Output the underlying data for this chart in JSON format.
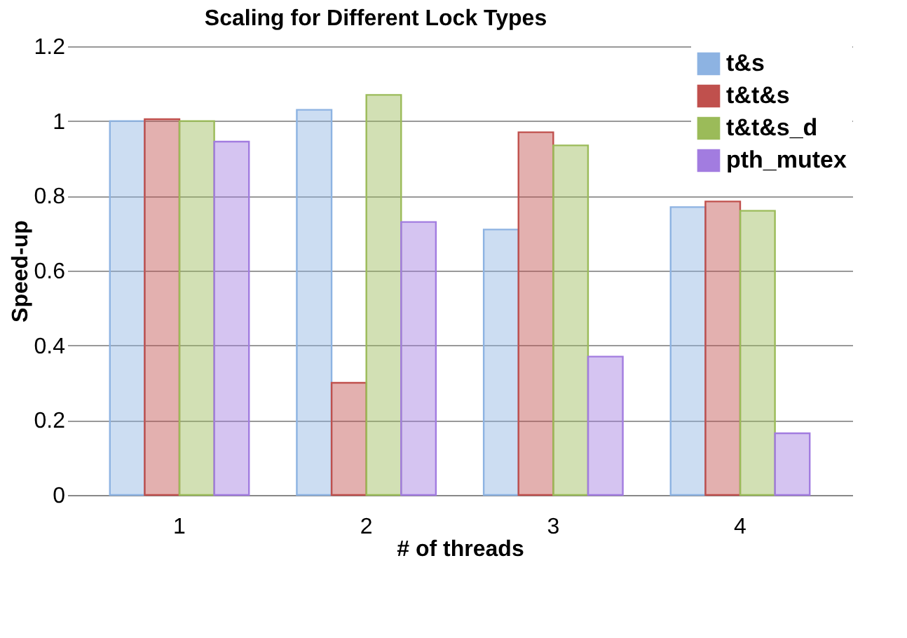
{
  "chart_data": {
    "type": "bar",
    "title": "Scaling for Different Lock Types",
    "xlabel": "# of threads",
    "ylabel": "Speed-up",
    "categories": [
      "1",
      "2",
      "3",
      "4"
    ],
    "series": [
      {
        "name": "t&s",
        "color": "#8db3e2",
        "values": [
          1.0,
          1.03,
          0.71,
          0.77
        ]
      },
      {
        "name": "t&t&s",
        "color": "#c0504d",
        "values": [
          1.005,
          0.3,
          0.97,
          0.785
        ]
      },
      {
        "name": "t&t&s_d",
        "color": "#9bbb59",
        "values": [
          1.0,
          1.07,
          0.935,
          0.76
        ]
      },
      {
        "name": "pth_mutex",
        "color": "#a27ce0",
        "values": [
          0.945,
          0.73,
          0.37,
          0.165
        ]
      }
    ],
    "ylim": [
      0,
      1.2
    ],
    "yticks": [
      0,
      0.2,
      0.4,
      0.6,
      0.8,
      1,
      1.2
    ],
    "grid": "y",
    "legend": "top right"
  }
}
